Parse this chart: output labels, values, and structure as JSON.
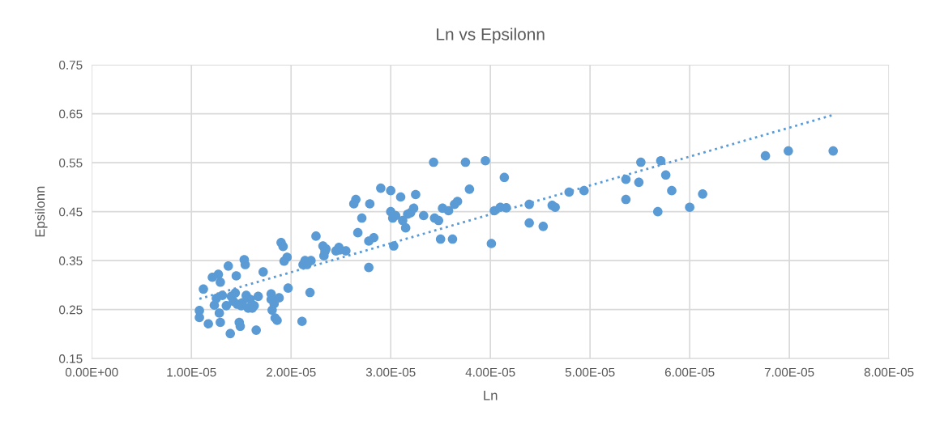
{
  "chart_data": {
    "type": "scatter",
    "title": "Ln vs Epsilonn",
    "xlabel": "Ln",
    "ylabel": "Epsilonn",
    "xlim": [
      0,
      8e-05
    ],
    "xticks": [
      {
        "value": 0,
        "label": "0.00E+00"
      },
      {
        "value": 1e-05,
        "label": "1.00E-05"
      },
      {
        "value": 2e-05,
        "label": "2.00E-05"
      },
      {
        "value": 3e-05,
        "label": "3.00E-05"
      },
      {
        "value": 4e-05,
        "label": "4.00E-05"
      },
      {
        "value": 5e-05,
        "label": "5.00E-05"
      },
      {
        "value": 6e-05,
        "label": "6.00E-05"
      },
      {
        "value": 7e-05,
        "label": "7.00E-05"
      },
      {
        "value": 8e-05,
        "label": "8.00E-05"
      }
    ],
    "ylim": [
      0.15,
      0.75
    ],
    "yticks": [
      0.15,
      0.25,
      0.35,
      0.45,
      0.55,
      0.65,
      0.75
    ],
    "grid": true,
    "marker": "circle",
    "series": [
      {
        "color": "#5b9bd5",
        "x": [
          1.08e-05,
          1.08e-05,
          1.12e-05,
          1.17e-05,
          1.21e-05,
          1.23e-05,
          1.25e-05,
          1.27e-05,
          1.28e-05,
          1.29e-05,
          1.29e-05,
          1.31e-05,
          1.35e-05,
          1.37e-05,
          1.39e-05,
          1.4e-05,
          1.42e-05,
          1.44e-05,
          1.45e-05,
          1.46e-05,
          1.48e-05,
          1.49e-05,
          1.5e-05,
          1.51e-05,
          1.53e-05,
          1.54e-05,
          1.55e-05,
          1.57e-05,
          1.59e-05,
          1.61e-05,
          1.63e-05,
          1.65e-05,
          1.67e-05,
          1.72e-05,
          1.8e-05,
          1.8e-05,
          1.81e-05,
          1.83e-05,
          1.84e-05,
          1.86e-05,
          1.88e-05,
          1.9e-05,
          1.92e-05,
          1.93e-05,
          1.96e-05,
          1.97e-05,
          2.11e-05,
          2.12e-05,
          2.14e-05,
          2.16e-05,
          2.19e-05,
          2.2e-05,
          2.25e-05,
          2.32e-05,
          2.33e-05,
          2.34e-05,
          2.35e-05,
          2.45e-05,
          2.48e-05,
          2.49e-05,
          2.55e-05,
          2.63e-05,
          2.65e-05,
          2.67e-05,
          2.71e-05,
          2.78e-05,
          2.78e-05,
          2.79e-05,
          2.83e-05,
          2.9e-05,
          3e-05,
          3e-05,
          3.02e-05,
          3.03e-05,
          3.05e-05,
          3.1e-05,
          3.12e-05,
          3.15e-05,
          3.17e-05,
          3.2e-05,
          3.23e-05,
          3.25e-05,
          3.33e-05,
          3.43e-05,
          3.44e-05,
          3.48e-05,
          3.5e-05,
          3.52e-05,
          3.58e-05,
          3.62e-05,
          3.64e-05,
          3.67e-05,
          3.75e-05,
          3.79e-05,
          3.95e-05,
          4.01e-05,
          4.04e-05,
          4.1e-05,
          4.14e-05,
          4.16e-05,
          4.39e-05,
          4.39e-05,
          4.53e-05,
          4.62e-05,
          4.65e-05,
          4.79e-05,
          4.94e-05,
          5.36e-05,
          5.36e-05,
          5.49e-05,
          5.51e-05,
          5.68e-05,
          5.71e-05,
          5.76e-05,
          5.82e-05,
          6e-05,
          6.13e-05,
          6.76e-05,
          6.99e-05,
          7.44e-05
        ],
        "values": [
          0.248,
          0.234,
          0.292,
          0.221,
          0.316,
          0.259,
          0.273,
          0.322,
          0.243,
          0.306,
          0.224,
          0.279,
          0.258,
          0.339,
          0.201,
          0.277,
          0.267,
          0.284,
          0.319,
          0.261,
          0.224,
          0.216,
          0.258,
          0.264,
          0.352,
          0.342,
          0.279,
          0.253,
          0.271,
          0.253,
          0.258,
          0.208,
          0.277,
          0.327,
          0.282,
          0.271,
          0.249,
          0.262,
          0.233,
          0.228,
          0.274,
          0.387,
          0.379,
          0.349,
          0.357,
          0.294,
          0.226,
          0.342,
          0.35,
          0.342,
          0.285,
          0.35,
          0.4,
          0.38,
          0.36,
          0.369,
          0.374,
          0.37,
          0.377,
          0.372,
          0.37,
          0.466,
          0.475,
          0.407,
          0.437,
          0.336,
          0.39,
          0.466,
          0.397,
          0.498,
          0.493,
          0.45,
          0.437,
          0.38,
          0.442,
          0.48,
          0.432,
          0.417,
          0.445,
          0.448,
          0.457,
          0.485,
          0.442,
          0.551,
          0.437,
          0.432,
          0.394,
          0.457,
          0.452,
          0.394,
          0.465,
          0.471,
          0.551,
          0.496,
          0.554,
          0.385,
          0.452,
          0.459,
          0.52,
          0.458,
          0.465,
          0.427,
          0.42,
          0.463,
          0.459,
          0.49,
          0.493,
          0.516,
          0.475,
          0.51,
          0.551,
          0.45,
          0.554,
          0.525,
          0.493,
          0.459,
          0.486,
          0.564,
          0.574,
          0.574
        ]
      },
      {
        "type": "line",
        "color": "#5b9bd5",
        "line_style": "dotted",
        "marker": "none",
        "x": [
          1.08e-05,
          7.43e-05
        ],
        "values": [
          0.272,
          0.647
        ]
      }
    ]
  }
}
